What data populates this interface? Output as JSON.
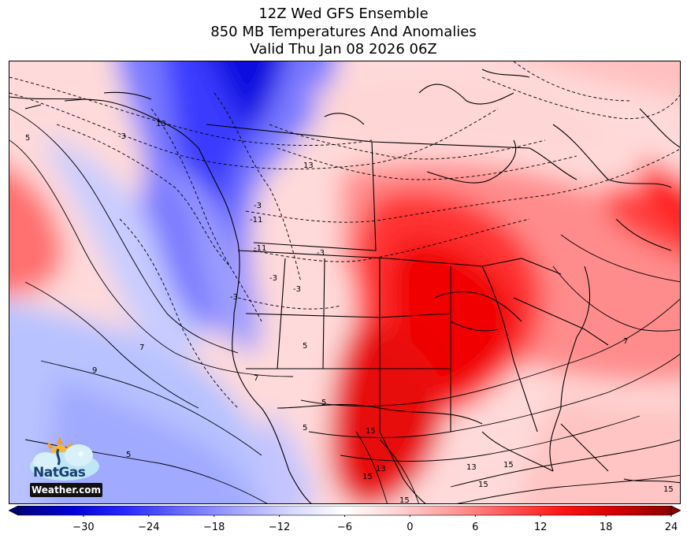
{
  "header": {
    "line1": "12Z Wed GFS Ensemble",
    "line2": "850 MB Temperatures And Anomalies",
    "line3": "Valid Thu Jan 08 2026 06Z"
  },
  "logo": {
    "brand": "NatGas",
    "site": "Weather.com"
  },
  "colorbar": {
    "min": -36,
    "max": 24,
    "ticks": [
      -30,
      -24,
      -18,
      -12,
      -6,
      0,
      6,
      12,
      18,
      24
    ],
    "tick_labels": [
      "−30",
      "−24",
      "−18",
      "−12",
      "−6",
      "0",
      "6",
      "12",
      "18",
      "24"
    ],
    "colors": [
      "#00007a",
      "#0000d8",
      "#2a2aff",
      "#6a6aff",
      "#a4a4ff",
      "#d6d6ff",
      "#ffffff",
      "#ffd2d2",
      "#ff9a9a",
      "#ff5656",
      "#ff1414",
      "#d40000",
      "#8a0000"
    ]
  },
  "contour_labels": [
    "13",
    "5",
    "-3",
    "13",
    "-3",
    "-11",
    "-3",
    "-11",
    "-3",
    "-3",
    "5",
    "-3",
    "5",
    "7",
    "9",
    "5",
    "5",
    "7",
    "13",
    "15",
    "15",
    "15",
    "7",
    "15",
    "15",
    "13",
    "15"
  ]
}
